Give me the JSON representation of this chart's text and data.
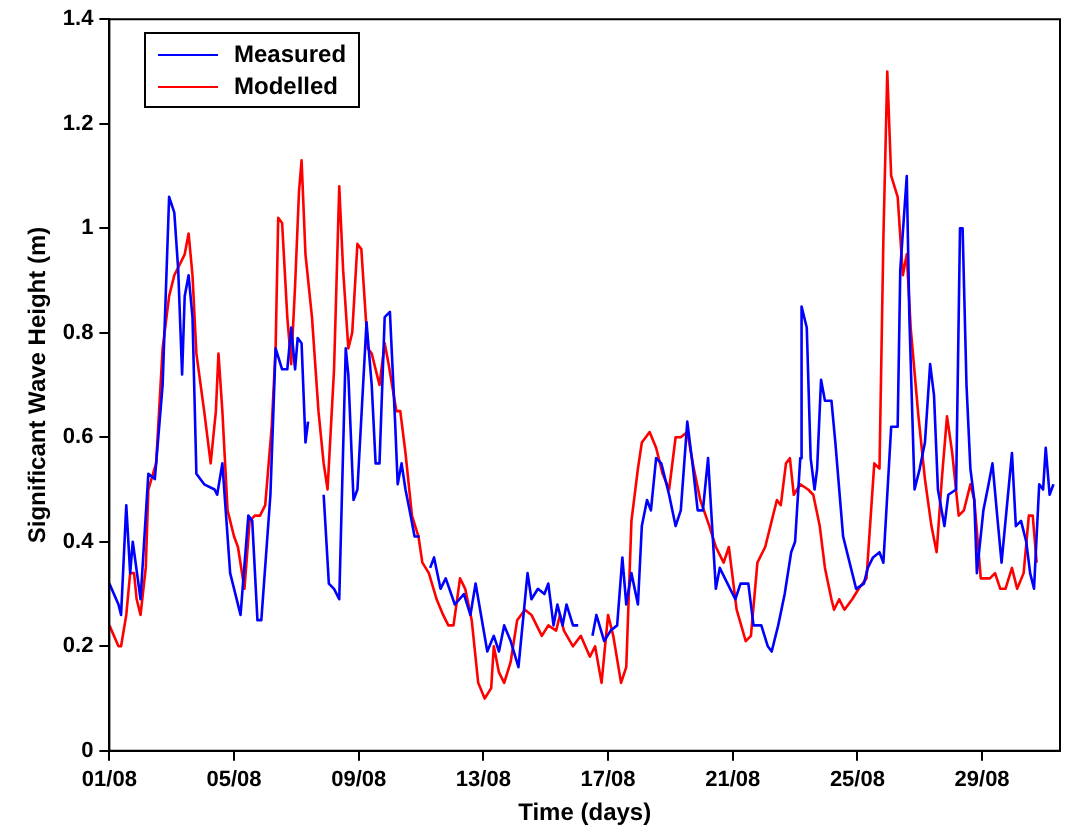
{
  "chart_data": {
    "type": "line",
    "xlabel": "Time (days)",
    "ylabel": "Significant Wave Height (m)",
    "xlim": [
      "--08-01",
      "--08-31T12:00"
    ],
    "xticks": [
      {
        "value": "--08-01",
        "label": "01/08"
      },
      {
        "value": "--08-05",
        "label": "05/08"
      },
      {
        "value": "--08-09",
        "label": "09/08"
      },
      {
        "value": "--08-13",
        "label": "13/08"
      },
      {
        "value": "--08-17",
        "label": "17/08"
      },
      {
        "value": "--08-21",
        "label": "21/08"
      },
      {
        "value": "--08-25",
        "label": "25/08"
      },
      {
        "value": "--08-29",
        "label": "29/08"
      }
    ],
    "ylim": [
      0,
      1.4
    ],
    "yticks": [
      0,
      0.2,
      0.4,
      0.6,
      0.8,
      1,
      1.2,
      1.4
    ],
    "grid": false,
    "legend": "top left",
    "marker": "none",
    "line_style": "solid",
    "series": [
      {
        "name": "Measured",
        "color": "#0000ff",
        "x": [
          "--08-01T00:00",
          "--08-01T07:00",
          "--08-01T09:00",
          "--08-01T13:00",
          "--08-01T16:00",
          "--08-01T18:00",
          "--08-02T00:00",
          "--08-02T06:00",
          "--08-02T11:00",
          "--08-02T17:00",
          "--08-02T22:00",
          "--08-03T02:00",
          "--08-03T05:00",
          "--08-03T08:00",
          "--08-03T10:00",
          "--08-03T13:00",
          "--08-03T16:00",
          "--08-03T19:00",
          "--08-04T01:00",
          "--08-04T09:00",
          "--08-04T11:00",
          "--08-04T15:00",
          "--08-04T21:00",
          "--08-05T05:00",
          "--08-05T11:00",
          "--08-05T14:00",
          "--08-05T18:00",
          "--08-05T21:00",
          "--08-06T04:00",
          "--08-06T08:00",
          "--08-06T13:00",
          "--08-06T17:00",
          "--08-06T20:00",
          "--08-06T23:00",
          "--08-07T01:00",
          "--08-07T04:00",
          "--08-07T07:00",
          "--08-07T09:00",
          "--08-07T14:00",
          "--08-07T21:00",
          "--08-08T01:00",
          "--08-08T05:00",
          "--08-08T09:00",
          "--08-08T14:00",
          "--08-08T16:00",
          "--08-08T20:00",
          "--08-08T23:00",
          "--08-09T06:00",
          "--08-09T10:00",
          "--08-09T13:00",
          "--08-09T16:00",
          "--08-09T20:00",
          "--08-10T00:00",
          "--08-10T04:00",
          "--08-10T06:00",
          "--08-10T09:00",
          "--08-10T12:00",
          "--08-10T16:00",
          "--08-10T19:00",
          "--08-10T23:00",
          "--08-11T02:00",
          "--08-11T07:00",
          "--08-11T10:00",
          "--08-11T15:00",
          "--08-11T19:00",
          "--08-12T02:00",
          "--08-12T09:00",
          "--08-12T14:00",
          "--08-12T18:00",
          "--08-13T03:00",
          "--08-13T08:00",
          "--08-13T12:00",
          "--08-13T16:00",
          "--08-13T21:00",
          "--08-14T03:00",
          "--08-14T10:00",
          "--08-14T13:00",
          "--08-14T18:00",
          "--08-14T23:00",
          "--08-15T02:00",
          "--08-15T06:00",
          "--08-15T09:00",
          "--08-15T13:00",
          "--08-15T16:00",
          "--08-15T21:00",
          "--08-16T01:00",
          "--08-16T06:00",
          "--08-16T12:00",
          "--08-16T15:00",
          "--08-16T21:00",
          "--08-17T02:00",
          "--08-17T07:00",
          "--08-17T11:00",
          "--08-17T14:00",
          "--08-17T18:00",
          "--08-17T23:00",
          "--08-18T02:00",
          "--08-18T06:00",
          "--08-18T09:00",
          "--08-18T13:00",
          "--08-18T17:00",
          "--08-18T23:00",
          "--08-19T04:00",
          "--08-19T08:00",
          "--08-19T13:00",
          "--08-19T17:00",
          "--08-19T21:00",
          "--08-20T01:00",
          "--08-20T05:00",
          "--08-20T11:00",
          "--08-20T14:00",
          "--08-20T22:00",
          "--08-21T02:00",
          "--08-21T06:00",
          "--08-21T12:00",
          "--08-21T16:00",
          "--08-21T22:00",
          "--08-22T03:00",
          "--08-22T06:00",
          "--08-22T11:00",
          "--08-22T16:00",
          "--08-22T21:00",
          "--08-23T00:00",
          "--08-23T04:00",
          "--08-23T05:00",
          "--08-23T09:00",
          "--08-23T12:00",
          "--08-23T15:00",
          "--08-23T17:00",
          "--08-23T20:00",
          "--08-23T23:00",
          "--08-24T04:00",
          "--08-24T07:00",
          "--08-24T13:00",
          "--08-24T18:00",
          "--08-24T23:00",
          "--08-25T05:00",
          "--08-25T08:00",
          "--08-25T12:00",
          "--08-25T17:00",
          "--08-25T20:00",
          "--08-26T02:00",
          "--08-26T07:00",
          "--08-26T09:00",
          "--08-26T14:00",
          "--08-26T16:00",
          "--08-26T20:00",
          "--08-27T00:00",
          "--08-27T04:00",
          "--08-27T08:00",
          "--08-27T11:00",
          "--08-27T14:00",
          "--08-27T19:00",
          "--08-27T22:00",
          "--08-28T04:00",
          "--08-28T07:00",
          "--08-28T09:00",
          "--08-28T12:00",
          "--08-28T15:00",
          "--08-28T18:00",
          "--08-28T20:00",
          "--08-29T01:00",
          "--08-29T05:00",
          "--08-29T08:00",
          "--08-29T12:00",
          "--08-29T15:00",
          "--08-29T23:00",
          "--08-30T02:00",
          "--08-30T06:00",
          "--08-30T10:00",
          "--08-30T13:00",
          "--08-30T16:00",
          "--08-30T20:00",
          "--08-30T23:00",
          "--08-31T01:00",
          "--08-31T04:00",
          "--08-31T07:00"
        ],
        "values": [
          0.32,
          0.28,
          0.26,
          0.47,
          0.34,
          0.4,
          0.29,
          0.53,
          0.52,
          0.7,
          1.06,
          1.03,
          0.92,
          0.72,
          0.87,
          0.91,
          0.83,
          0.53,
          0.51,
          0.5,
          0.49,
          0.55,
          0.34,
          0.26,
          0.45,
          0.44,
          0.25,
          0.25,
          0.49,
          0.77,
          0.73,
          0.73,
          0.81,
          0.73,
          0.79,
          0.78,
          0.59,
          0.63,
          null,
          0.49,
          0.32,
          0.31,
          0.29,
          0.77,
          0.72,
          0.48,
          0.5,
          0.82,
          0.7,
          0.55,
          0.55,
          0.83,
          0.84,
          0.63,
          0.51,
          0.55,
          0.5,
          0.45,
          0.41,
          0.41,
          null,
          0.35,
          0.37,
          0.31,
          0.33,
          0.28,
          0.3,
          0.26,
          0.32,
          0.19,
          0.22,
          0.19,
          0.24,
          0.21,
          0.16,
          0.34,
          0.29,
          0.31,
          0.3,
          0.32,
          0.24,
          0.28,
          0.24,
          0.28,
          0.24,
          0.24,
          null,
          0.22,
          0.26,
          0.21,
          0.23,
          0.24,
          0.37,
          0.28,
          0.34,
          0.28,
          0.43,
          0.48,
          0.46,
          0.56,
          0.55,
          0.49,
          0.43,
          0.46,
          0.63,
          0.55,
          0.46,
          0.46,
          0.56,
          0.31,
          0.35,
          0.31,
          0.29,
          0.32,
          0.32,
          0.24,
          0.24,
          0.2,
          0.19,
          0.24,
          0.3,
          0.38,
          0.4,
          0.56,
          0.85,
          0.81,
          0.56,
          0.5,
          0.54,
          0.71,
          0.67,
          0.67,
          0.59,
          0.41,
          0.36,
          0.31,
          0.32,
          0.35,
          0.37,
          0.38,
          0.36,
          0.62,
          0.62,
          0.92,
          1.1,
          0.83,
          0.5,
          0.54,
          0.59,
          0.74,
          0.68,
          0.5,
          0.43,
          0.49,
          0.5,
          1.0,
          1.0,
          0.7,
          0.54,
          0.48,
          0.34,
          0.46,
          0.51,
          0.55,
          0.44,
          0.36,
          0.57,
          0.43,
          0.44,
          0.4,
          0.34,
          0.31,
          0.51,
          0.5,
          0.58,
          0.49,
          0.51
        ]
      },
      {
        "name": "Modelled",
        "color": "#ff0000",
        "x": [
          "--08-01T00:00",
          "--08-01T07:00",
          "--08-01T09:00",
          "--08-01T13:00",
          "--08-01T16:00",
          "--08-01T19:00",
          "--08-01T21:00",
          "--08-02T00:00",
          "--08-02T04:00",
          "--08-02T06:00",
          "--08-02T12:00",
          "--08-02T17:00",
          "--08-02T22:00",
          "--08-03T02:00",
          "--08-03T08:00",
          "--08-03T10:00",
          "--08-03T13:00",
          "--08-03T16:00",
          "--08-03T19:00",
          "--08-04T01:00",
          "--08-04T06:00",
          "--08-04T10:00",
          "--08-04T12:00",
          "--08-04T15:00",
          "--08-04T19:00",
          "--08-05T00:00",
          "--08-05T03:00",
          "--08-05T08:00",
          "--08-05T12:00",
          "--08-05T16:00",
          "--08-05T20:00",
          "--08-06T00:00",
          "--08-06T05:00",
          "--08-06T08:00",
          "--08-06T10:00",
          "--08-06T13:00",
          "--08-06T17:00",
          "--08-06T20:00",
          "--08-06T23:00",
          "--08-07T02:00",
          "--08-07T04:00",
          "--08-07T07:00",
          "--08-07T12:00",
          "--08-07T17:00",
          "--08-07T21:00",
          "--08-08T00:00",
          "--08-08T05:00",
          "--08-08T09:00",
          "--08-08T12:00",
          "--08-08T16:00",
          "--08-08T19:00",
          "--08-08T23:00",
          "--08-09T02:00",
          "--08-09T07:00",
          "--08-09T10:00",
          "--08-09T16:00",
          "--08-09T20:00",
          "--08-09T23:00",
          "--08-10T01:00",
          "--08-10T05:00",
          "--08-10T08:00",
          "--08-10T12:00",
          "--08-10T17:00",
          "--08-10T22:00",
          "--08-11T01:00",
          "--08-11T06:00",
          "--08-11T12:00",
          "--08-11T17:00",
          "--08-11T21:00",
          "--08-12T01:00",
          "--08-12T06:00",
          "--08-12T10:00",
          "--08-12T15:00",
          "--08-12T20:00",
          "--08-13T01:00",
          "--08-13T06:00",
          "--08-13T08:00",
          "--08-13T12:00",
          "--08-13T16:00",
          "--08-13T21:00",
          "--08-14T02:00",
          "--08-14T08:00",
          "--08-14T13:00",
          "--08-14T21:00",
          "--08-15T02:00",
          "--08-15T08:00",
          "--08-15T11:00",
          "--08-15T14:00",
          "--08-15T21:00",
          "--08-16T03:00",
          "--08-16T10:00",
          "--08-16T14:00",
          "--08-16T19:00",
          "--08-17T00:00",
          "--08-17T04:00",
          "--08-17T10:00",
          "--08-17T14:00",
          "--08-17T18:00",
          "--08-17T23:00",
          "--08-18T02:00",
          "--08-18T08:00",
          "--08-18T13:00",
          "--08-18T18:00",
          "--08-18T23:00",
          "--08-19T04:00",
          "--08-19T08:00",
          "--08-19T13:00",
          "--08-19T18:00",
          "--08-19T23:00",
          "--08-20T06:00",
          "--08-20T11:00",
          "--08-20T17:00",
          "--08-20T21:00",
          "--08-21T03:00",
          "--08-21T10:00",
          "--08-21T14:00",
          "--08-21T19:00",
          "--08-22T01:00",
          "--08-22T06:00",
          "--08-22T10:00",
          "--08-22T13:00",
          "--08-22T17:00",
          "--08-22T20:00",
          "--08-22T23:00",
          "--08-23T04:00",
          "--08-23T10:00",
          "--08-23T14:00",
          "--08-23T19:00",
          "--08-23T23:00",
          "--08-24T04:00",
          "--08-24T06:00",
          "--08-24T10:00",
          "--08-24T14:00",
          "--08-24T20:00",
          "--08-25T01:00",
          "--08-25T07:00",
          "--08-25T13:00",
          "--08-25T17:00",
          "--08-25T20:00",
          "--08-25T23:00",
          "--08-26T02:00",
          "--08-26T07:00",
          "--08-26T11:00",
          "--08-26T14:00",
          "--08-26T17:00",
          "--08-26T23:00",
          "--08-27T04:00",
          "--08-27T09:00",
          "--08-27T13:00",
          "--08-27T17:00",
          "--08-27T21:00",
          "--08-28T01:00",
          "--08-28T06:00",
          "--08-28T10:00",
          "--08-28T15:00",
          "--08-28T18:00",
          "--08-28T23:00",
          "--08-29T06:00",
          "--08-29T10:00",
          "--08-29T14:00",
          "--08-29T18:00",
          "--08-29T23:00",
          "--08-30T03:00",
          "--08-30T08:00",
          "--08-30T12:00",
          "--08-30T15:00",
          "--08-30T18:00"
        ],
        "values": [
          0.24,
          0.2,
          0.2,
          0.26,
          0.34,
          0.34,
          0.29,
          0.26,
          0.35,
          0.5,
          0.55,
          0.77,
          0.87,
          0.91,
          0.94,
          0.95,
          0.99,
          0.91,
          0.76,
          0.65,
          0.55,
          0.65,
          0.76,
          0.65,
          0.46,
          0.41,
          0.39,
          0.31,
          0.44,
          0.45,
          0.45,
          0.47,
          0.62,
          0.77,
          1.02,
          1.01,
          0.83,
          0.74,
          0.89,
          1.07,
          1.13,
          0.95,
          0.83,
          0.65,
          0.55,
          0.5,
          0.73,
          1.08,
          0.92,
          0.77,
          0.8,
          0.97,
          0.96,
          0.77,
          0.76,
          0.7,
          0.78,
          0.74,
          0.71,
          0.65,
          0.65,
          0.57,
          0.45,
          0.41,
          0.36,
          0.34,
          0.29,
          0.26,
          0.24,
          0.24,
          0.33,
          0.31,
          0.25,
          0.13,
          0.1,
          0.12,
          0.2,
          0.15,
          0.13,
          0.17,
          0.25,
          0.27,
          0.26,
          0.22,
          0.24,
          0.23,
          0.26,
          0.23,
          0.2,
          0.22,
          0.18,
          0.2,
          0.13,
          0.26,
          0.22,
          0.13,
          0.16,
          0.44,
          0.54,
          0.59,
          0.61,
          0.58,
          0.53,
          0.5,
          0.6,
          0.6,
          0.61,
          0.54,
          0.48,
          0.43,
          0.39,
          0.36,
          0.39,
          0.27,
          0.21,
          0.22,
          0.36,
          0.39,
          0.44,
          0.48,
          0.47,
          0.55,
          0.56,
          0.49,
          0.51,
          0.5,
          0.49,
          0.43,
          0.35,
          0.29,
          0.27,
          0.29,
          0.27,
          0.29,
          0.31,
          0.33,
          0.55,
          0.54,
          0.98,
          1.3,
          1.1,
          1.06,
          0.91,
          0.95,
          0.81,
          0.64,
          0.52,
          0.43,
          0.38,
          0.52,
          0.64,
          0.57,
          0.45,
          0.46,
          0.51,
          0.48,
          0.33,
          0.33,
          0.34,
          0.31,
          0.31,
          0.35,
          0.31,
          0.34,
          0.45,
          0.45,
          0.36
        ]
      }
    ]
  }
}
